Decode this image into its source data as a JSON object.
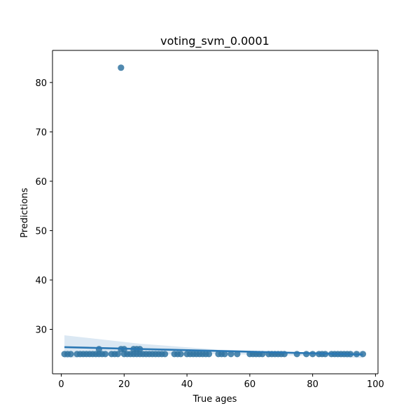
{
  "chart_data": {
    "type": "scatter",
    "title": "voting_svm_0.0001",
    "xlabel": "True ages",
    "ylabel": "Predictions",
    "xlim": [
      -2.8,
      100.8
    ],
    "ylim": [
      21,
      86.5
    ],
    "xticks": [
      0,
      20,
      40,
      60,
      80,
      100
    ],
    "yticks": [
      30,
      40,
      50,
      60,
      70,
      80
    ],
    "grid": false,
    "legend": "none",
    "colors": {
      "points": "#3174a1",
      "line": "#2b78b4",
      "band": "#cfe0ef"
    },
    "points": {
      "x": [
        1,
        2,
        3,
        5,
        6,
        7,
        8,
        9,
        10,
        11,
        12,
        12,
        13,
        14,
        16,
        17,
        18,
        19,
        19,
        20,
        20,
        21,
        22,
        23,
        23,
        24,
        24,
        25,
        25,
        26,
        27,
        28,
        29,
        30,
        31,
        32,
        33,
        36,
        37,
        38,
        40,
        41,
        42,
        43,
        44,
        45,
        46,
        47,
        50,
        51,
        52,
        54,
        56,
        60,
        61,
        62,
        63,
        64,
        66,
        67,
        68,
        69,
        70,
        71,
        75,
        78,
        80,
        82,
        83,
        84,
        86,
        87,
        88,
        89,
        90,
        91,
        92,
        94,
        96
      ],
      "y": [
        25,
        25,
        25,
        25,
        25,
        25,
        25,
        25,
        25,
        25,
        25,
        26,
        25,
        25,
        25,
        25,
        25,
        83,
        26,
        25,
        26,
        25,
        25,
        25,
        26,
        25,
        26,
        25,
        26,
        25,
        25,
        25,
        25,
        25,
        25,
        25,
        25,
        25,
        25,
        25,
        25,
        25,
        25,
        25,
        25,
        25,
        25,
        25,
        25,
        25,
        25,
        25,
        25,
        25,
        25,
        25,
        25,
        25,
        25,
        25,
        25,
        25,
        25,
        25,
        25,
        25,
        25,
        25,
        25,
        25,
        25,
        25,
        25,
        25,
        25,
        25,
        25,
        25,
        25
      ]
    },
    "regression": {
      "x": [
        1,
        96
      ],
      "y": [
        26.4,
        24.9
      ]
    },
    "confidence_band": {
      "x": [
        1,
        25,
        50,
        75,
        96
      ],
      "lower": [
        24.2,
        24.9,
        25.0,
        24.7,
        24.2
      ],
      "upper": [
        28.8,
        27.1,
        25.9,
        25.4,
        25.6
      ]
    }
  }
}
